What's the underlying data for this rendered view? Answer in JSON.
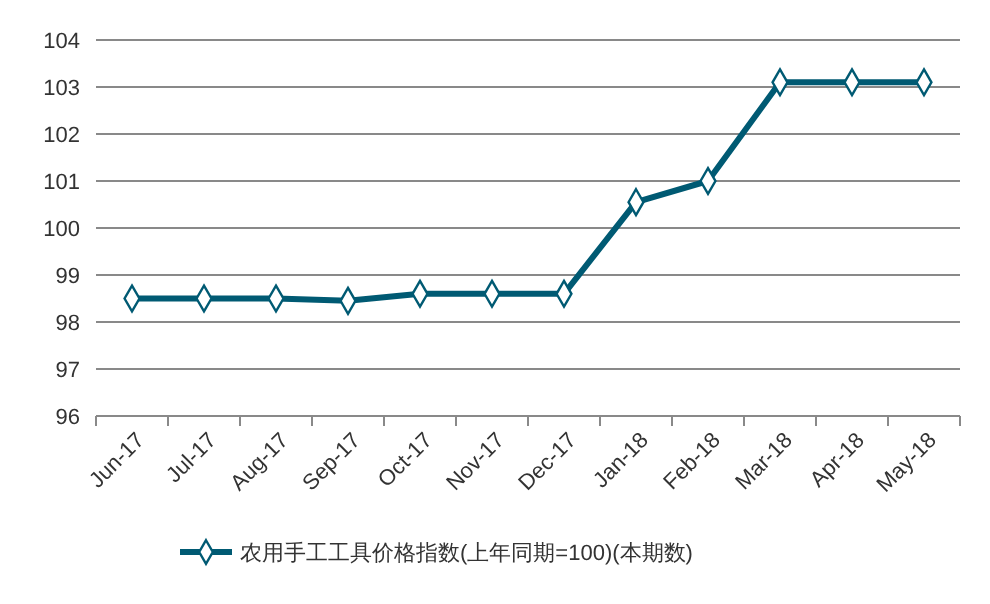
{
  "chart_data": {
    "type": "line",
    "categories": [
      "Jun-17",
      "Jul-17",
      "Aug-17",
      "Sep-17",
      "Oct-17",
      "Nov-17",
      "Dec-17",
      "Jan-18",
      "Feb-18",
      "Mar-18",
      "Apr-18",
      "May-18"
    ],
    "series": [
      {
        "name": "农用手工工具价格指数(上年同期=100)(本期数)",
        "color": "#005a73",
        "values": [
          98.5,
          98.5,
          98.5,
          98.45,
          98.6,
          98.6,
          98.6,
          100.55,
          101,
          103.1,
          103.1,
          103.1
        ]
      }
    ],
    "ylim": [
      96,
      104
    ],
    "yticks": [
      96,
      97,
      98,
      99,
      100,
      101,
      102,
      103,
      104
    ],
    "grid": "y",
    "legend": "bottom",
    "marker": "diamond",
    "line_style": "solid"
  }
}
